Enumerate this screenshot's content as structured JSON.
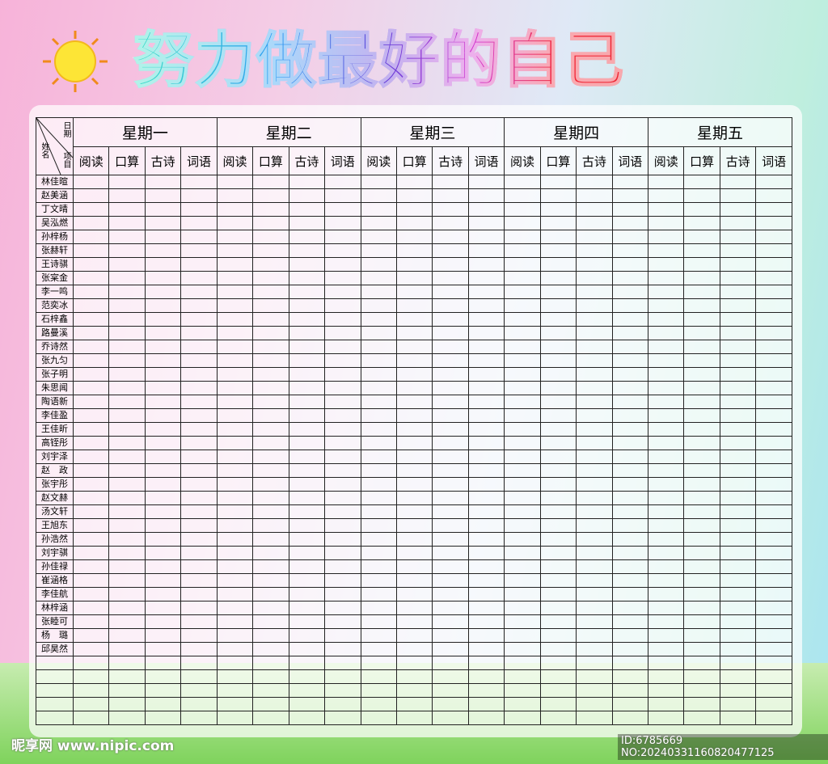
{
  "header": {
    "title": "努力做最好的自己"
  },
  "table": {
    "corner": {
      "date": "日期",
      "item": "项目",
      "name": "姓名"
    },
    "days": [
      "星期一",
      "星期二",
      "星期三",
      "星期四",
      "星期五"
    ],
    "subjects": [
      "阅读",
      "口算",
      "古诗",
      "词语"
    ],
    "names": [
      "林佳暄",
      "赵美涵",
      "丁文晴",
      "吴泓燃",
      "孙梓杨",
      "张赫轩",
      "王诗骐",
      "张宲金",
      "李一鸣",
      "范奕冰",
      "石梓鑫",
      "路曼溪",
      "乔诗然",
      "张九匀",
      "张子明",
      "朱思闻",
      "陶语新",
      "李佳盈",
      "王佳昕",
      "高铚彤",
      "刘宇泽",
      "赵　政",
      "张宇彤",
      "赵文赫",
      "汤文轩",
      "王旭东",
      "孙浩然",
      "刘宇骐",
      "孙佳禄",
      "崔涵格",
      "李佳航",
      "林梓涵",
      "张睦可",
      "杨　璐",
      "邱昊然"
    ]
  },
  "watermark": {
    "site": "昵享网 www.nipic.com",
    "id": "ID:6785669 NO:20240331160820477125"
  }
}
